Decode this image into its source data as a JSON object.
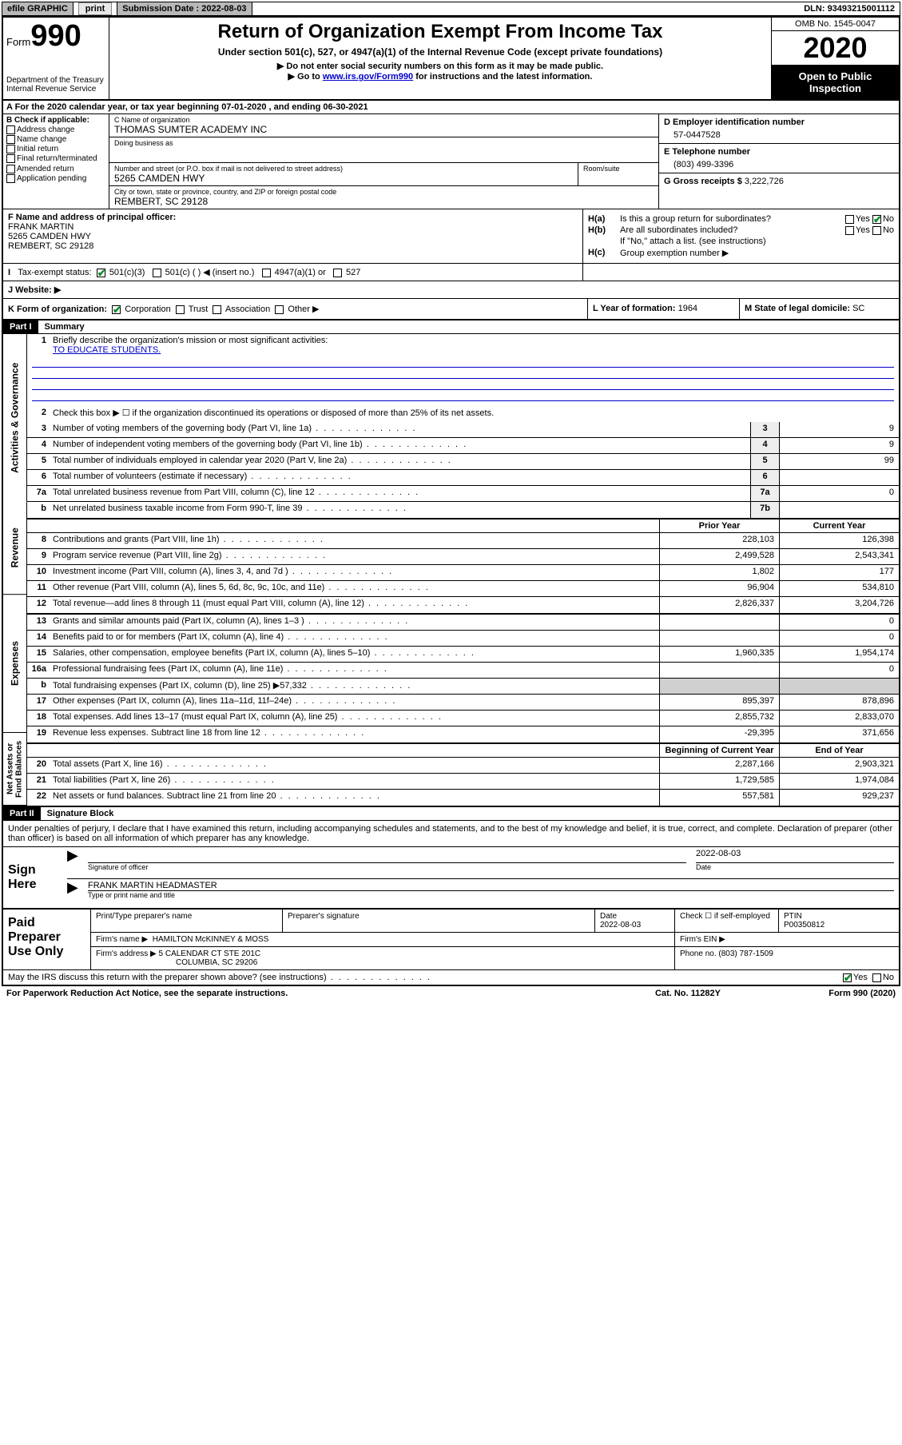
{
  "topbar": {
    "efile": "efile GRAPHIC",
    "print": "print",
    "subdate_label": "Submission Date :",
    "subdate": "2022-08-03",
    "dln_label": "DLN:",
    "dln": "93493215001112"
  },
  "header": {
    "form_label": "Form",
    "form_number": "990",
    "dept": "Department of the Treasury\nInternal Revenue Service",
    "title": "Return of Organization Exempt From Income Tax",
    "subtitle": "Under section 501(c), 527, or 4947(a)(1) of the Internal Revenue Code (except private foundations)",
    "note1": "▶ Do not enter social security numbers on this form as it may be made public.",
    "note2_pre": "▶ Go to ",
    "note2_link": "www.irs.gov/Form990",
    "note2_post": " for instructions and the latest information.",
    "omb": "OMB No. 1545-0047",
    "year": "2020",
    "open_public": "Open to Public Inspection"
  },
  "row_a": "A For the 2020 calendar year, or tax year beginning 07-01-2020   , and ending 06-30-2021",
  "col_b": {
    "label": "B Check if applicable:",
    "opts": [
      "Address change",
      "Name change",
      "Initial return",
      "Final return/terminated",
      "Amended return",
      "Application pending"
    ]
  },
  "col_c": {
    "name_lbl": "C Name of organization",
    "name": "THOMAS SUMTER ACADEMY INC",
    "dba_lbl": "Doing business as",
    "dba": "",
    "street_lbl": "Number and street (or P.O. box if mail is not delivered to street address)",
    "street": "5265 CAMDEN HWY",
    "suite_lbl": "Room/suite",
    "city_lbl": "City or town, state or province, country, and ZIP or foreign postal code",
    "city": "REMBERT, SC  29128"
  },
  "col_de": {
    "d_lbl": "D Employer identification number",
    "d_val": "57-0447528",
    "e_lbl": "E Telephone number",
    "e_val": "(803) 499-3396",
    "g_lbl": "G Gross receipts $",
    "g_val": "3,222,726"
  },
  "col_f": {
    "lbl": "F Name and address of principal officer:",
    "name": "FRANK MARTIN",
    "addr1": "5265 CAMDEN HWY",
    "addr2": "REMBERT, SC  29128"
  },
  "col_h": {
    "ha_lbl": "H(a)",
    "ha_txt": "Is this a group return for subordinates?",
    "hb_lbl": "H(b)",
    "hb_txt": "Are all subordinates included?",
    "hb_note": "If \"No,\" attach a list. (see instructions)",
    "hc_lbl": "H(c)",
    "hc_txt": "Group exemption number ▶"
  },
  "tax_status": {
    "lbl": "Tax-exempt status:",
    "opts": [
      "501(c)(3)",
      "501(c) (  ) ◀ (insert no.)",
      "4947(a)(1) or",
      "527"
    ]
  },
  "website_lbl": "J   Website: ▶",
  "k": {
    "lbl": "K Form of organization:",
    "opts": [
      "Corporation",
      "Trust",
      "Association",
      "Other ▶"
    ]
  },
  "l": {
    "lbl": "L Year of formation:",
    "val": "1964"
  },
  "m": {
    "lbl": "M State of legal domicile:",
    "val": "SC"
  },
  "part1": {
    "hdr": "Part I",
    "title": "Summary"
  },
  "mission": {
    "num": "1",
    "lbl": "Briefly describe the organization's mission or most significant activities:",
    "val": "TO EDUCATE STUDENTS."
  },
  "line2": {
    "num": "2",
    "txt": "Check this box ▶ ☐  if the organization discontinued its operations or disposed of more than 25% of its net assets."
  },
  "governance_lines": [
    {
      "num": "3",
      "txt": "Number of voting members of the governing body (Part VI, line 1a)",
      "box": "3",
      "val": "9"
    },
    {
      "num": "4",
      "txt": "Number of independent voting members of the governing body (Part VI, line 1b)",
      "box": "4",
      "val": "9"
    },
    {
      "num": "5",
      "txt": "Total number of individuals employed in calendar year 2020 (Part V, line 2a)",
      "box": "5",
      "val": "99"
    },
    {
      "num": "6",
      "txt": "Total number of volunteers (estimate if necessary)",
      "box": "6",
      "val": ""
    },
    {
      "num": "7a",
      "txt": "Total unrelated business revenue from Part VIII, column (C), line 12",
      "box": "7a",
      "val": "0"
    },
    {
      "num": "b",
      "txt": "Net unrelated business taxable income from Form 990-T, line 39",
      "box": "7b",
      "val": ""
    }
  ],
  "col_hdrs": {
    "prior": "Prior Year",
    "current": "Current Year",
    "begin": "Beginning of Current Year",
    "end": "End of Year"
  },
  "revenue_lines": [
    {
      "num": "8",
      "txt": "Contributions and grants (Part VIII, line 1h)",
      "prior": "228,103",
      "curr": "126,398"
    },
    {
      "num": "9",
      "txt": "Program service revenue (Part VIII, line 2g)",
      "prior": "2,499,528",
      "curr": "2,543,341"
    },
    {
      "num": "10",
      "txt": "Investment income (Part VIII, column (A), lines 3, 4, and 7d )",
      "prior": "1,802",
      "curr": "177"
    },
    {
      "num": "11",
      "txt": "Other revenue (Part VIII, column (A), lines 5, 6d, 8c, 9c, 10c, and 11e)",
      "prior": "96,904",
      "curr": "534,810"
    },
    {
      "num": "12",
      "txt": "Total revenue—add lines 8 through 11 (must equal Part VIII, column (A), line 12)",
      "prior": "2,826,337",
      "curr": "3,204,726"
    }
  ],
  "expense_lines": [
    {
      "num": "13",
      "txt": "Grants and similar amounts paid (Part IX, column (A), lines 1–3 )",
      "prior": "",
      "curr": "0"
    },
    {
      "num": "14",
      "txt": "Benefits paid to or for members (Part IX, column (A), line 4)",
      "prior": "",
      "curr": "0"
    },
    {
      "num": "15",
      "txt": "Salaries, other compensation, employee benefits (Part IX, column (A), lines 5–10)",
      "prior": "1,960,335",
      "curr": "1,954,174"
    },
    {
      "num": "16a",
      "txt": "Professional fundraising fees (Part IX, column (A), line 11e)",
      "prior": "",
      "curr": "0"
    },
    {
      "num": "b",
      "txt": "Total fundraising expenses (Part IX, column (D), line 25) ▶57,332",
      "prior": "__shade__",
      "curr": "__shade__"
    },
    {
      "num": "17",
      "txt": "Other expenses (Part IX, column (A), lines 11a–11d, 11f–24e)",
      "prior": "895,397",
      "curr": "878,896"
    },
    {
      "num": "18",
      "txt": "Total expenses. Add lines 13–17 (must equal Part IX, column (A), line 25)",
      "prior": "2,855,732",
      "curr": "2,833,070"
    },
    {
      "num": "19",
      "txt": "Revenue less expenses. Subtract line 18 from line 12",
      "prior": "-29,395",
      "curr": "371,656"
    }
  ],
  "netassets_lines": [
    {
      "num": "20",
      "txt": "Total assets (Part X, line 16)",
      "prior": "2,287,166",
      "curr": "2,903,321"
    },
    {
      "num": "21",
      "txt": "Total liabilities (Part X, line 26)",
      "prior": "1,729,585",
      "curr": "1,974,084"
    },
    {
      "num": "22",
      "txt": "Net assets or fund balances. Subtract line 21 from line 20",
      "prior": "557,581",
      "curr": "929,237"
    }
  ],
  "vtabs": {
    "gov": "Activities & Governance",
    "rev": "Revenue",
    "exp": "Expenses",
    "net": "Net Assets or Fund Balances"
  },
  "part2": {
    "hdr": "Part II",
    "title": "Signature Block"
  },
  "penalties": "Under penalties of perjury, I declare that I have examined this return, including accompanying schedules and statements, and to the best of my knowledge and belief, it is true, correct, and complete. Declaration of preparer (other than officer) is based on all information of which preparer has any knowledge.",
  "sign": {
    "here": "Sign Here",
    "sig_officer_lbl": "Signature of officer",
    "date_lbl": "Date",
    "date": "2022-08-03",
    "name": "FRANK MARTIN  HEADMASTER",
    "name_lbl": "Type or print name and title"
  },
  "paid": {
    "hdr": "Paid Preparer Use Only",
    "prep_name_lbl": "Print/Type preparer's name",
    "prep_sig_lbl": "Preparer's signature",
    "date_lbl": "Date",
    "date": "2022-08-03",
    "check_lbl": "Check ☐ if self-employed",
    "ptin_lbl": "PTIN",
    "ptin": "P00350812",
    "firm_name_lbl": "Firm's name    ▶",
    "firm_name": "HAMILTON McKINNEY & MOSS",
    "firm_ein_lbl": "Firm's EIN ▶",
    "firm_addr_lbl": "Firm's address ▶",
    "firm_addr1": "5 CALENDAR CT STE 201C",
    "firm_addr2": "COLUMBIA, SC  29206",
    "phone_lbl": "Phone no.",
    "phone": "(803) 787-1509"
  },
  "discuss": "May the IRS discuss this return with the preparer shown above? (see instructions)",
  "footer": {
    "pra": "For Paperwork Reduction Act Notice, see the separate instructions.",
    "cat": "Cat. No. 11282Y",
    "form": "Form 990 (2020)"
  },
  "colors": {
    "link": "#0000cc",
    "check": "#0a8a2a",
    "shade": "#d0d0d0"
  }
}
